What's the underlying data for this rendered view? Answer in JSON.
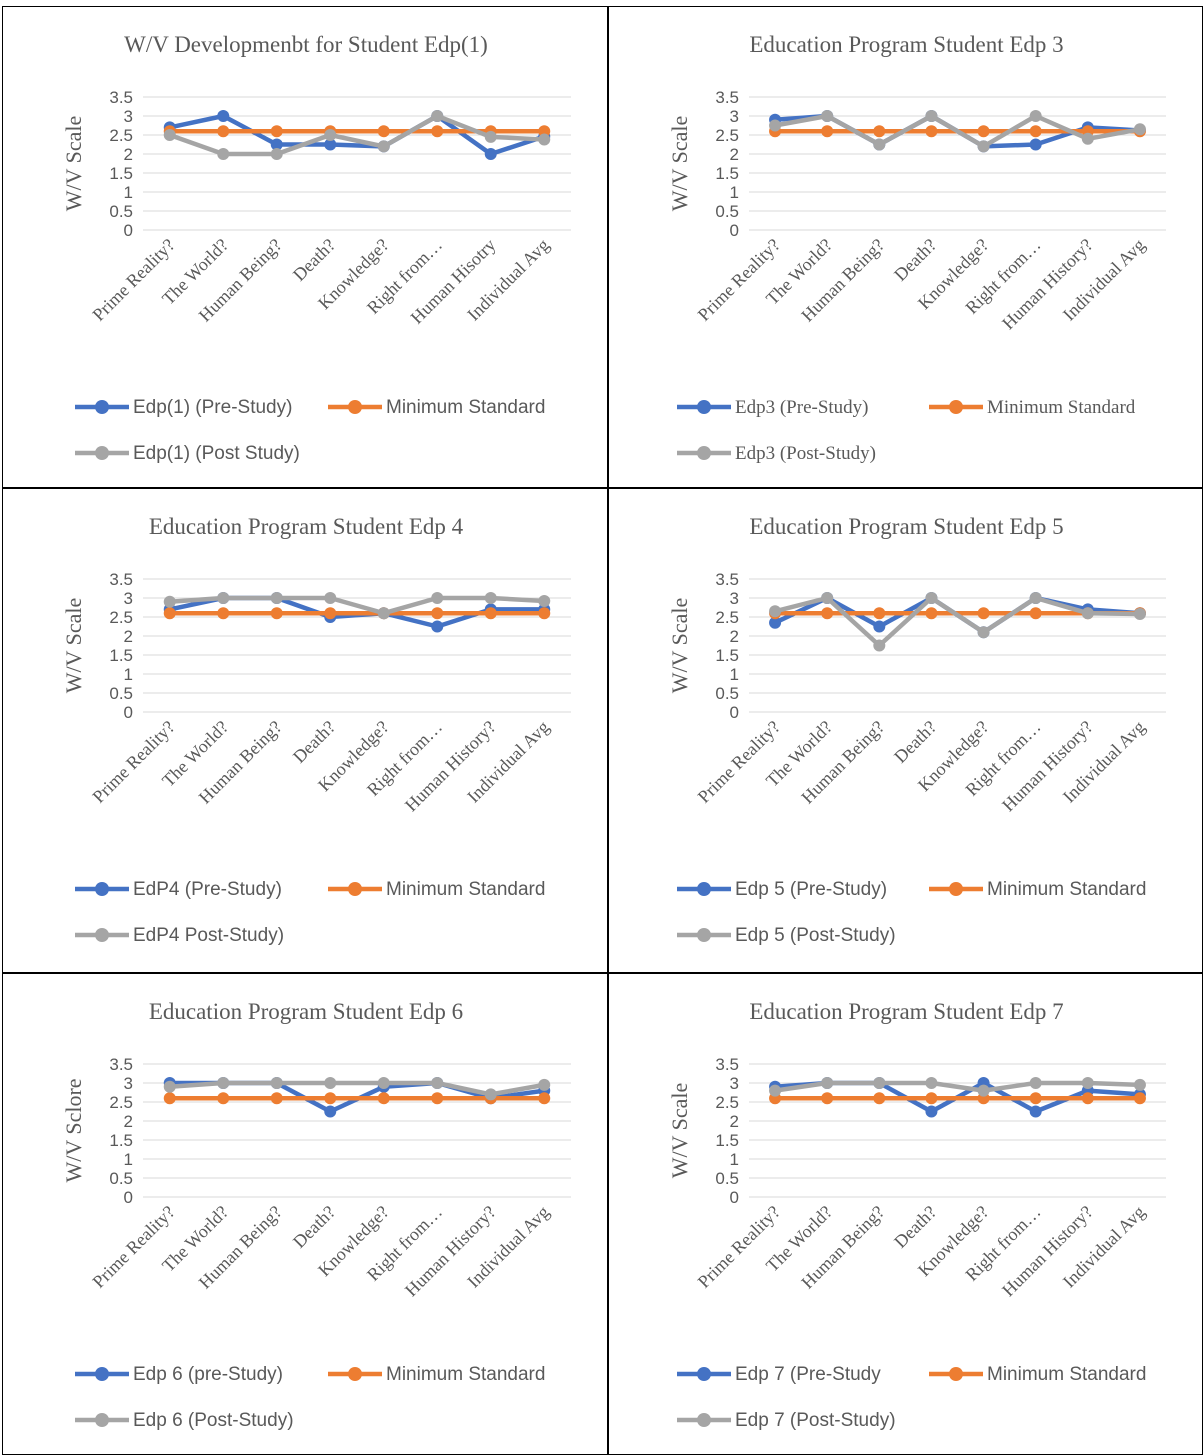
{
  "colors": {
    "pre": "#4472C4",
    "min": "#ED7D31",
    "post": "#A5A5A5",
    "grid": "#D9D9D9",
    "text": "#595959"
  },
  "chart_data": [
    {
      "type": "line",
      "title": "W/V Developmenbt for Student Edp(1)",
      "ylabel": "W/V Scale",
      "xlabel": "",
      "ylim": [
        0,
        3.5
      ],
      "yticks": [
        "3.5",
        "3",
        "2.5",
        "2",
        "1.5",
        "1",
        "0.5",
        "0"
      ],
      "grid": true,
      "legend_position": "bottom",
      "categories": [
        "Prime Reality?",
        "The World?",
        "Human Being?",
        "Death?",
        "Knowledge?",
        "Right from…",
        "Human Hisotry",
        "Individual Avg"
      ],
      "series": [
        {
          "name": "Edp(1) (Pre-Study)",
          "color": "#4472C4",
          "values": [
            2.7,
            3.0,
            2.25,
            2.25,
            2.2,
            3.0,
            2.0,
            2.46
          ]
        },
        {
          "name": "Minimum Standard",
          "color": "#ED7D31",
          "values": [
            2.6,
            2.6,
            2.6,
            2.6,
            2.6,
            2.6,
            2.6,
            2.6
          ]
        },
        {
          "name": "Edp(1) (Post Study)",
          "color": "#A5A5A5",
          "values": [
            2.5,
            2.0,
            2.0,
            2.5,
            2.2,
            3.0,
            2.45,
            2.38
          ]
        }
      ]
    },
    {
      "type": "line",
      "title": "Education Program Student Edp 3",
      "ylabel": "W/V Scale",
      "xlabel": "",
      "ylim": [
        0,
        3.5
      ],
      "yticks": [
        "3.5",
        "3",
        "2.5",
        "2",
        "1.5",
        "1",
        "0.5",
        "0"
      ],
      "grid": true,
      "legend_position": "bottom",
      "categories": [
        "Prime Reality?",
        "The World?",
        "Human Being?",
        "Death?",
        "Knowledge?",
        "Right from…",
        "Human History?",
        "Individual Avg"
      ],
      "series": [
        {
          "name": "Edp3 (Pre-Study)",
          "color": "#4472C4",
          "values": [
            2.9,
            3.0,
            2.25,
            3.0,
            2.2,
            2.25,
            2.7,
            2.62
          ]
        },
        {
          "name": "Minimum Standard",
          "color": "#ED7D31",
          "values": [
            2.6,
            2.6,
            2.6,
            2.6,
            2.6,
            2.6,
            2.6,
            2.6
          ]
        },
        {
          "name": "Edp3 (Post-Study)",
          "color": "#A5A5A5",
          "values": [
            2.75,
            3.0,
            2.25,
            3.0,
            2.2,
            3.0,
            2.4,
            2.65
          ]
        }
      ]
    },
    {
      "type": "line",
      "title": "Education Program Student Edp 4",
      "ylabel": "W/V Scale",
      "xlabel": "",
      "ylim": [
        0,
        3.5
      ],
      "yticks": [
        "3.5",
        "3",
        "2.5",
        "2",
        "1.5",
        "1",
        "0.5",
        "0"
      ],
      "grid": true,
      "legend_position": "bottom",
      "categories": [
        "Prime Reality?",
        "The World?",
        "Human Being?",
        "Death?",
        "Knowledge?",
        "Right from…",
        "Human History?",
        "Individual Avg"
      ],
      "series": [
        {
          "name": "EdP4 (Pre-Study)",
          "color": "#4472C4",
          "values": [
            2.7,
            3.0,
            3.0,
            2.5,
            2.6,
            2.25,
            2.7,
            2.7
          ]
        },
        {
          "name": "Minimum Standard",
          "color": "#ED7D31",
          "values": [
            2.6,
            2.6,
            2.6,
            2.6,
            2.6,
            2.6,
            2.6,
            2.6
          ]
        },
        {
          "name": "EdP4 Post-Study)",
          "color": "#A5A5A5",
          "values": [
            2.9,
            3.0,
            3.0,
            3.0,
            2.6,
            3.0,
            3.0,
            2.92
          ]
        }
      ]
    },
    {
      "type": "line",
      "title": "Education Program Student Edp 5",
      "ylabel": "W/V Scale",
      "xlabel": "",
      "ylim": [
        0,
        3.5
      ],
      "yticks": [
        "3.5",
        "3",
        "2.5",
        "2",
        "1.5",
        "1",
        "0.5",
        "0"
      ],
      "grid": true,
      "legend_position": "bottom",
      "categories": [
        "Prime Reality?",
        "The World?",
        "Human Being?",
        "Death?",
        "Knowledge?",
        "Right from…",
        "Human History?",
        "Individual Avg"
      ],
      "series": [
        {
          "name": "Edp 5 (Pre-Study)",
          "color": "#4472C4",
          "values": [
            2.35,
            3.0,
            2.25,
            3.0,
            2.1,
            3.0,
            2.7,
            2.6
          ]
        },
        {
          "name": "Minimum Standard",
          "color": "#ED7D31",
          "values": [
            2.6,
            2.6,
            2.6,
            2.6,
            2.6,
            2.6,
            2.6,
            2.6
          ]
        },
        {
          "name": "Edp 5 (Post-Study)",
          "color": "#A5A5A5",
          "values": [
            2.65,
            3.0,
            1.75,
            3.0,
            2.1,
            3.0,
            2.6,
            2.58
          ]
        }
      ]
    },
    {
      "type": "line",
      "title": "Education Program Student Edp 6",
      "ylabel": "W/V Sclore",
      "xlabel": "",
      "ylim": [
        0,
        3.5
      ],
      "yticks": [
        "3.5",
        "3",
        "2.5",
        "2",
        "1.5",
        "1",
        "0.5",
        "0"
      ],
      "grid": true,
      "legend_position": "bottom",
      "categories": [
        "Prime Reality?",
        "The World?",
        "Human Being?",
        "Death?",
        "Knowledge?",
        "Right from…",
        "Human History?",
        "Individual Avg"
      ],
      "series": [
        {
          "name": "Edp 6 (pre-Study)",
          "color": "#4472C4",
          "values": [
            3.0,
            3.0,
            3.0,
            2.25,
            2.9,
            3.0,
            2.6,
            2.8
          ]
        },
        {
          "name": "Minimum Standard",
          "color": "#ED7D31",
          "values": [
            2.6,
            2.6,
            2.6,
            2.6,
            2.6,
            2.6,
            2.6,
            2.6
          ]
        },
        {
          "name": "Edp 6 (Post-Study)",
          "color": "#A5A5A5",
          "values": [
            2.9,
            3.0,
            3.0,
            3.0,
            3.0,
            3.0,
            2.7,
            2.95
          ]
        }
      ]
    },
    {
      "type": "line",
      "title": "Education Program Student Edp 7",
      "ylabel": "W/V Scale",
      "xlabel": "",
      "ylim": [
        0,
        3.5
      ],
      "yticks": [
        "3.5",
        "3",
        "2.5",
        "2",
        "1.5",
        "1",
        "0.5",
        "0"
      ],
      "grid": true,
      "legend_position": "bottom",
      "categories": [
        "Prime Reality?",
        "The World?",
        "Human Being?",
        "Death?",
        "Knowledge?",
        "Right from…",
        "Human History?",
        "Individual Avg"
      ],
      "series": [
        {
          "name": "Edp 7 (Pre-Study",
          "color": "#4472C4",
          "values": [
            2.9,
            3.0,
            3.0,
            2.25,
            3.0,
            2.25,
            2.8,
            2.7
          ]
        },
        {
          "name": "Minimum Standard",
          "color": "#ED7D31",
          "values": [
            2.6,
            2.6,
            2.6,
            2.6,
            2.6,
            2.6,
            2.6,
            2.6
          ]
        },
        {
          "name": "Edp 7 (Post-Study)",
          "color": "#A5A5A5",
          "values": [
            2.8,
            3.0,
            3.0,
            3.0,
            2.8,
            3.0,
            3.0,
            2.95
          ]
        }
      ]
    }
  ]
}
